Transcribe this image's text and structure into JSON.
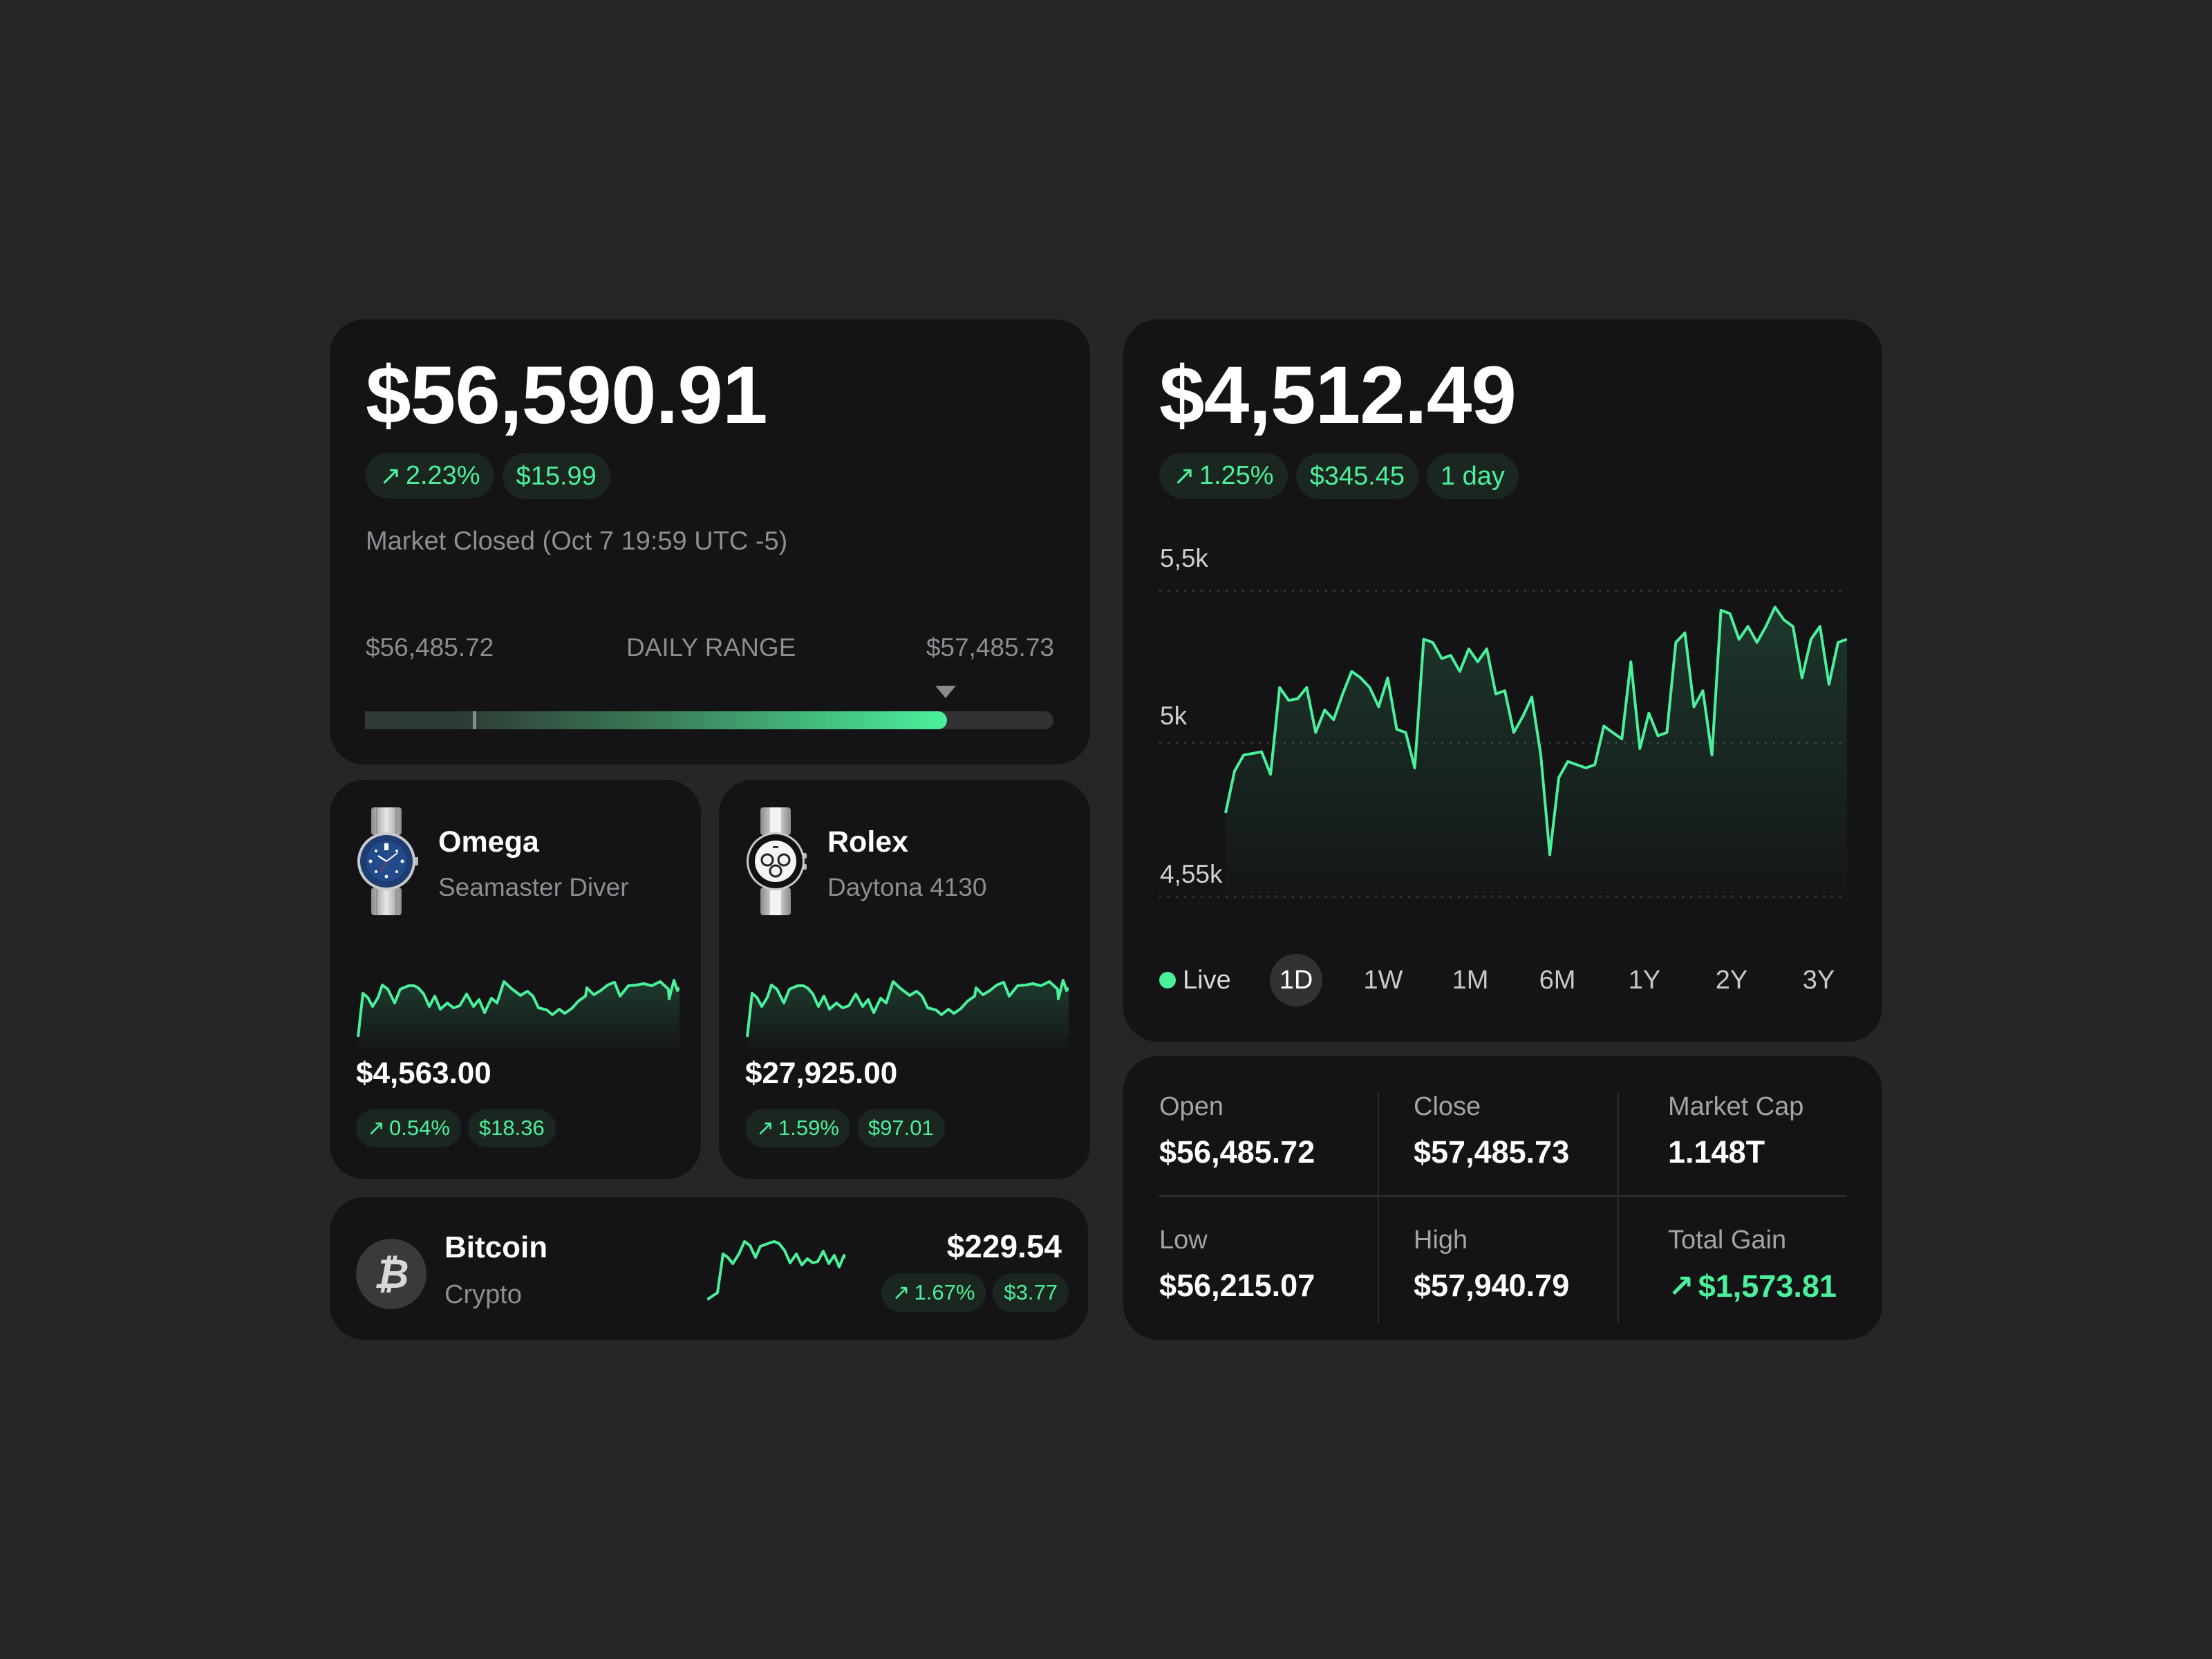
{
  "colors": {
    "background": "#262626",
    "card": "#141416",
    "accent": "#4bf09b",
    "pill_bg": "#1b2620",
    "muted": "#8d8d92"
  },
  "summary": {
    "price": "$56,590.91",
    "change_pct": "2.23%",
    "change_abs": "$15.99",
    "change_icon": "arrow-up-right-icon",
    "status": "Market Closed (Oct 7 19:59 UTC -5)",
    "daily_range": {
      "low": "$56,485.72",
      "label": "DAILY RANGE",
      "high": "$57,485.73"
    }
  },
  "watches": [
    {
      "brand": "Omega",
      "model": "Seamaster Diver",
      "price": "$4,563.00",
      "change_pct": "0.54%",
      "change_abs": "$18.36"
    },
    {
      "brand": "Rolex",
      "model": "Daytona 4130",
      "price": "$27,925.00",
      "change_pct": "1.59%",
      "change_abs": "$97.01"
    }
  ],
  "bitcoin": {
    "name": "Bitcoin",
    "category": "Crypto",
    "icon": "bitcoin-icon",
    "icon_glyph": "₿",
    "price": "$229.54",
    "change_pct": "1.67%",
    "change_abs": "$3.77"
  },
  "detail": {
    "price": "$4,512.49",
    "change_pct": "1.25%",
    "change_abs": "$345.45",
    "period": "1 day",
    "live_label": "Live",
    "timeframes": [
      "1D",
      "1W",
      "1M",
      "6M",
      "1Y",
      "2Y",
      "3Y"
    ],
    "active_timeframe": "1D"
  },
  "stats": {
    "open": {
      "label": "Open",
      "value": "$56,485.72"
    },
    "close": {
      "label": "Close",
      "value": "$57,485.73"
    },
    "market_cap": {
      "label": "Market Cap",
      "value": "1.148T"
    },
    "low": {
      "label": "Low",
      "value": "$56,215.07"
    },
    "high": {
      "label": "High",
      "value": "$57,940.79"
    },
    "total_gain": {
      "label": "Total Gain",
      "value": "$1,573.81"
    }
  },
  "chart_data": {
    "type": "area",
    "title": "",
    "xlabel": "",
    "ylabel": "",
    "y_ticks": [
      "5,5k",
      "5k",
      "4,55k"
    ],
    "ylim": [
      4550,
      5550
    ],
    "grid": true,
    "x": [
      0,
      1,
      2,
      3,
      4,
      5,
      6,
      7,
      8,
      9,
      10,
      11,
      12,
      13,
      14,
      15,
      16,
      17,
      18,
      19,
      20,
      21,
      22,
      23,
      24,
      25,
      26,
      27,
      28,
      29,
      30,
      31,
      32,
      33,
      34,
      35,
      36,
      37,
      38,
      39,
      40,
      41,
      42,
      43,
      44,
      45,
      46,
      47,
      48,
      49,
      50,
      51,
      52,
      53,
      54,
      55,
      56,
      57,
      58,
      59,
      60,
      61,
      62,
      63,
      64,
      65,
      66,
      67,
      68,
      69
    ],
    "values": [
      4810,
      4940,
      4990,
      4995,
      5000,
      4930,
      5200,
      5160,
      5165,
      5200,
      5060,
      5130,
      5100,
      5180,
      5250,
      5230,
      5200,
      5140,
      5230,
      5070,
      5060,
      4950,
      5350,
      5340,
      5290,
      5300,
      5250,
      5320,
      5280,
      5320,
      5180,
      5190,
      5060,
      5110,
      5170,
      4990,
      4680,
      4920,
      4970,
      4960,
      4950,
      4960,
      5080,
      5060,
      5040,
      5280,
      5010,
      5120,
      5050,
      5060,
      5340,
      5370,
      5140,
      5190,
      4990,
      5440,
      5430,
      5350,
      5390,
      5340,
      5390,
      5450,
      5410,
      5390,
      5230,
      5350,
      5390,
      5210,
      5340,
      5350
    ],
    "series_color": "#4bf09b"
  }
}
